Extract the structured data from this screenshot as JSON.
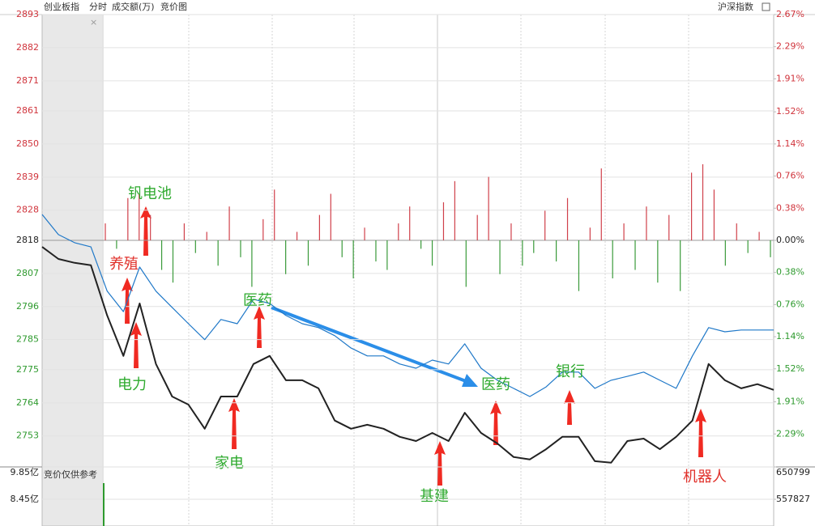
{
  "chart_data": [
    {
      "type": "line",
      "header": [
        "分时",
        "成交额(万)",
        "竞价图"
      ],
      "ylim": [
        2742.7,
        2893
      ],
      "yticks": [
        2893,
        2882,
        2871,
        2861,
        2850,
        2839,
        2828,
        2818,
        2807,
        2796,
        2785,
        2775,
        2764,
        2753
      ],
      "y2lim": [
        -2.68,
        2.67
      ],
      "y2ticks": [
        {
          "value": 2.67,
          "label": "2.67%"
        },
        {
          "value": 2.29,
          "label": "2.29%"
        },
        {
          "value": 1.91,
          "label": "1.91%"
        },
        {
          "value": 1.52,
          "label": "1.52%"
        },
        {
          "value": 1.14,
          "label": "1.14%"
        },
        {
          "value": 0.76,
          "label": "0.76%"
        },
        {
          "value": 0.38,
          "label": "0.38%"
        },
        {
          "value": 0,
          "label": "0.00%"
        },
        {
          "value": -0.38,
          "label": "0.38%"
        },
        {
          "value": -0.76,
          "label": "0.76%"
        },
        {
          "value": -1.14,
          "label": "1.14%"
        },
        {
          "value": -1.52,
          "label": "1.52%"
        },
        {
          "value": -1.91,
          "label": "1.91%"
        },
        {
          "value": -2.29,
          "label": "2.29%"
        }
      ],
      "tick_colors": {
        "up": "#d0343c",
        "flat": "#222222",
        "down": "#2e9a2e"
      },
      "series": [
        {
          "name": "创业板指",
          "color": "#222222",
          "values": [
            2815.8,
            2811.8,
            2810.5,
            2809.7,
            2793.0,
            2779.6,
            2797.0,
            2776.9,
            2766.1,
            2763.4,
            2755.4,
            2766.1,
            2766.1,
            2776.9,
            2779.6,
            2771.5,
            2771.5,
            2768.8,
            2758.1,
            2755.4,
            2756.7,
            2755.4,
            2752.7,
            2751.3,
            2754.0,
            2751.3,
            2760.7,
            2754.0,
            2750.5,
            2746.0,
            2745.2,
            2748.6,
            2752.7,
            2752.7,
            2744.6,
            2744.1,
            2751.3,
            2752.1,
            2748.6,
            2752.7,
            2758.1,
            2776.9,
            2771.5,
            2768.8,
            2770.2,
            2768.3
          ]
        },
        {
          "name": "沪深指数",
          "color": "#1f78c8",
          "values": [
            2826.6,
            2819.9,
            2817.2,
            2815.8,
            2801.1,
            2794.3,
            2809.1,
            2801.1,
            2795.7,
            2790.3,
            2785.0,
            2791.7,
            2790.3,
            2798.4,
            2797.0,
            2793.0,
            2790.3,
            2789.0,
            2786.3,
            2782.2,
            2779.6,
            2779.6,
            2776.9,
            2775.5,
            2778.2,
            2776.9,
            2783.6,
            2775.5,
            2771.5,
            2768.8,
            2766.1,
            2769.3,
            2774.2,
            2774.2,
            2768.8,
            2771.5,
            2772.8,
            2774.2,
            2771.5,
            2768.8,
            2779.6,
            2789.0,
            2787.6,
            2788.2,
            2788.2,
            2788.2
          ]
        }
      ],
      "bars": {
        "axis": "y2",
        "up_color": "#d0404a",
        "down_color": "#3a9a3a",
        "values": [
          0.2,
          -0.1,
          0.5,
          0.55,
          0.3,
          -0.35,
          -0.5,
          0.2,
          -0.15,
          0.1,
          -0.3,
          0.4,
          -0.2,
          -0.55,
          0.25,
          0.6,
          -0.4,
          0.1,
          -0.3,
          0.3,
          0.55,
          -0.2,
          -0.45,
          0.15,
          -0.25,
          -0.35,
          0.2,
          0.4,
          -0.1,
          -0.3,
          0.45,
          0.7,
          -0.55,
          0.3,
          0.75,
          -0.4,
          0.2,
          -0.3,
          -0.15,
          0.35,
          -0.25,
          0.5,
          -0.6,
          0.15,
          0.85,
          -0.45,
          0.2,
          -0.35,
          0.4,
          -0.5,
          0.3,
          -0.6,
          0.8,
          0.9,
          0.6,
          -0.3,
          0.2,
          -0.15,
          0.1,
          -0.2
        ]
      },
      "annotations": [
        {
          "text": "钒电池",
          "color": "#2eaa2e"
        },
        {
          "text": "养殖",
          "color": "#e0302a"
        },
        {
          "text": "电力",
          "color": "#2eaa2e"
        },
        {
          "text": "医药",
          "color": "#2eaa2e"
        },
        {
          "text": "家电",
          "color": "#2eaa2e"
        },
        {
          "text": "基建",
          "color": "#2eaa2e"
        },
        {
          "text": "医药",
          "color": "#2eaa2e"
        },
        {
          "text": "银行",
          "color": "#2eaa2e"
        },
        {
          "text": "机器人",
          "color": "#e0302a"
        }
      ]
    },
    {
      "type": "bar",
      "label": "竞价仅供参考",
      "values": [
        9.15
      ],
      "color": "#2e9a2e",
      "ylim": [
        7.295,
        9.85
      ],
      "yticks": [
        {
          "value": 9.85,
          "label": "9.85亿"
        },
        {
          "value": 8.45,
          "label": "8.45亿"
        }
      ],
      "y2lim": [
        481125,
        650799
      ],
      "y2ticks": [
        650799,
        557827
      ]
    }
  ]
}
